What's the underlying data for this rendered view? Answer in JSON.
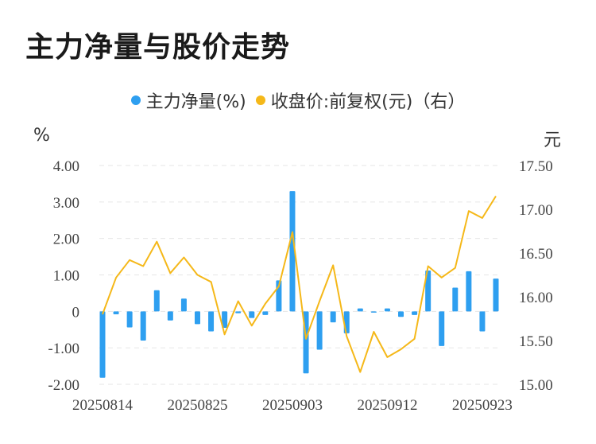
{
  "title": "主力净量与股价走势",
  "legend": {
    "series1": "主力净量(%)",
    "series2": "收盘价:前复权(元)（右）"
  },
  "units": {
    "left": "%",
    "right": "元"
  },
  "colors": {
    "bar": "#2e9ff0",
    "line": "#f5b819",
    "grid": "#e6e6e6"
  },
  "chart_data": {
    "type": "bar",
    "x_tick_labels": [
      "20250814",
      "20250825",
      "20250903",
      "20250912",
      "20250923"
    ],
    "x_tick_index": [
      0,
      7,
      14,
      21,
      28
    ],
    "ylim_left": [
      -2,
      4
    ],
    "yticks_left": [
      "4.00",
      "3.00",
      "2.00",
      "1.00",
      "0",
      "-1.00",
      "-2.00"
    ],
    "ylim_right": [
      15,
      17.5
    ],
    "yticks_right": [
      "17.50",
      "17.00",
      "16.50",
      "16.00",
      "15.50",
      "15.00"
    ],
    "grid": "horizontal dashed",
    "legend_position": "top",
    "series": [
      {
        "name": "主力净量(%)",
        "type": "bar",
        "axis": "left",
        "values": [
          -1.82,
          -0.08,
          -0.44,
          -0.8,
          0.58,
          -0.25,
          0.35,
          -0.35,
          -0.55,
          -0.45,
          -0.05,
          -0.18,
          -0.1,
          0.85,
          3.3,
          -1.7,
          -1.05,
          -0.3,
          -0.6,
          0.08,
          -0.03,
          0.08,
          -0.15,
          -0.1,
          1.12,
          -0.95,
          0.65,
          1.1,
          -0.55,
          0.9
        ]
      },
      {
        "name": "收盘价:前复权(元)（右）",
        "type": "line",
        "axis": "right",
        "values": [
          15.8,
          16.22,
          16.42,
          16.35,
          16.63,
          16.27,
          16.45,
          16.25,
          16.17,
          15.57,
          15.95,
          15.67,
          15.92,
          16.12,
          16.74,
          15.52,
          15.95,
          16.36,
          15.55,
          15.14,
          15.6,
          15.31,
          15.4,
          15.52,
          16.35,
          16.22,
          16.33,
          16.98,
          16.9,
          17.15
        ]
      }
    ]
  }
}
